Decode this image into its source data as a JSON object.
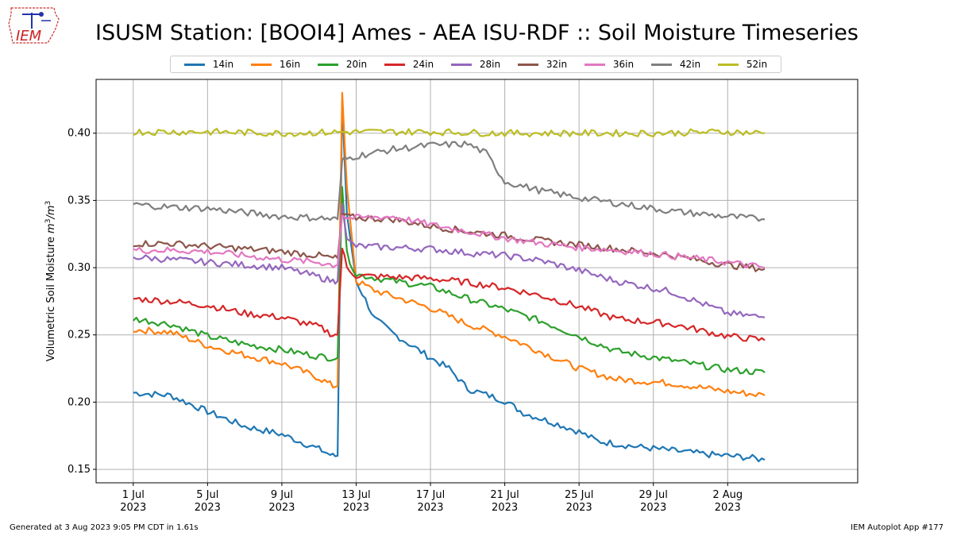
{
  "header": {
    "title": "ISUSM Station: [BOOI4] Ames - AEA ISU-RDF :: Soil Moisture Timeseries",
    "logo_text": "IEM"
  },
  "footer": {
    "left": "Generated at 3 Aug 2023 9:05 PM CDT in 1.61s",
    "right": "IEM Autoplot App #177"
  },
  "chart_data": {
    "type": "line",
    "title": "ISUSM Station: [BOOI4] Ames - AEA ISU-RDF :: Soil Moisture Timeseries",
    "ylabel": "Volumetric Soil Moisture m³/m³",
    "ylabel_main": "Volumetric Soil Moisture ",
    "ylabel_unit_a": "m",
    "ylabel_unit_b": "/m",
    "ylabel_sup": "3",
    "xlim_dates": [
      "2023-06-29",
      "2023-08-09"
    ],
    "ylim": [
      0.14,
      0.44
    ],
    "grid": true,
    "legend_position": "top-center",
    "xticks": [
      {
        "date": "2023-07-01",
        "line1": "1 Jul",
        "line2": "2023"
      },
      {
        "date": "2023-07-05",
        "line1": "5 Jul",
        "line2": "2023"
      },
      {
        "date": "2023-07-09",
        "line1": "9 Jul",
        "line2": "2023"
      },
      {
        "date": "2023-07-13",
        "line1": "13 Jul",
        "line2": "2023"
      },
      {
        "date": "2023-07-17",
        "line1": "17 Jul",
        "line2": "2023"
      },
      {
        "date": "2023-07-21",
        "line1": "21 Jul",
        "line2": "2023"
      },
      {
        "date": "2023-07-25",
        "line1": "25 Jul",
        "line2": "2023"
      },
      {
        "date": "2023-07-29",
        "line1": "29 Jul",
        "line2": "2023"
      },
      {
        "date": "2023-08-02",
        "line1": "2 Aug",
        "line2": "2023"
      }
    ],
    "yticks": [
      {
        "value": 0.15,
        "label": "0.15"
      },
      {
        "value": 0.2,
        "label": "0.20"
      },
      {
        "value": 0.25,
        "label": "0.25"
      },
      {
        "value": 0.3,
        "label": "0.30"
      },
      {
        "value": 0.35,
        "label": "0.35"
      },
      {
        "value": 0.4,
        "label": "0.40"
      }
    ],
    "series": [
      {
        "name": "14in",
        "color": "#1f77b4",
        "x": [
          "2023-07-01",
          "2023-07-03",
          "2023-07-05",
          "2023-07-07",
          "2023-07-09",
          "2023-07-11",
          "2023-07-11T18:00",
          "2023-07-12T00:00",
          "2023-07-12T06:00",
          "2023-07-12T12:00",
          "2023-07-13",
          "2023-07-14",
          "2023-07-15",
          "2023-07-17",
          "2023-07-18",
          "2023-07-19",
          "2023-07-21",
          "2023-07-22",
          "2023-07-24",
          "2023-07-25",
          "2023-07-26",
          "2023-07-28",
          "2023-07-30",
          "2023-08-01",
          "2023-08-03",
          "2023-08-04"
        ],
        "y": [
          0.207,
          0.205,
          0.193,
          0.182,
          0.176,
          0.165,
          0.16,
          0.16,
          0.424,
          0.34,
          0.29,
          0.262,
          0.251,
          0.233,
          0.225,
          0.21,
          0.201,
          0.192,
          0.183,
          0.178,
          0.171,
          0.167,
          0.164,
          0.161,
          0.159,
          0.157
        ]
      },
      {
        "name": "16in",
        "color": "#ff7f0e",
        "x": [
          "2023-07-01",
          "2023-07-03",
          "2023-07-05",
          "2023-07-07",
          "2023-07-09",
          "2023-07-11",
          "2023-07-11T18:00",
          "2023-07-12T00:00",
          "2023-07-12T06:00",
          "2023-07-12T12:00",
          "2023-07-13",
          "2023-07-14",
          "2023-07-17",
          "2023-07-19",
          "2023-07-21",
          "2023-07-23",
          "2023-07-25",
          "2023-07-27",
          "2023-07-30",
          "2023-08-02",
          "2023-08-04"
        ],
        "y": [
          0.254,
          0.252,
          0.242,
          0.235,
          0.229,
          0.218,
          0.212,
          0.212,
          0.43,
          0.36,
          0.29,
          0.283,
          0.27,
          0.258,
          0.249,
          0.237,
          0.225,
          0.217,
          0.214,
          0.208,
          0.205
        ]
      },
      {
        "name": "20in",
        "color": "#2ca02c",
        "x": [
          "2023-07-01",
          "2023-07-03",
          "2023-07-05",
          "2023-07-07",
          "2023-07-09",
          "2023-07-11",
          "2023-07-11T18:00",
          "2023-07-12T00:00",
          "2023-07-12T06:00",
          "2023-07-12T12:00",
          "2023-07-13",
          "2023-07-15",
          "2023-07-17",
          "2023-07-19",
          "2023-07-21",
          "2023-07-23",
          "2023-07-25",
          "2023-07-27",
          "2023-07-30",
          "2023-08-02",
          "2023-08-04"
        ],
        "y": [
          0.262,
          0.258,
          0.249,
          0.243,
          0.239,
          0.234,
          0.233,
          0.233,
          0.36,
          0.31,
          0.295,
          0.29,
          0.286,
          0.277,
          0.269,
          0.26,
          0.249,
          0.238,
          0.231,
          0.224,
          0.222
        ]
      },
      {
        "name": "24in",
        "color": "#d62728",
        "x": [
          "2023-07-01",
          "2023-07-03",
          "2023-07-05",
          "2023-07-07",
          "2023-07-09",
          "2023-07-11",
          "2023-07-11T18:00",
          "2023-07-12T00:00",
          "2023-07-12T06:00",
          "2023-07-12T12:00",
          "2023-07-13",
          "2023-07-15",
          "2023-07-17",
          "2023-07-19",
          "2023-07-21",
          "2023-07-23",
          "2023-07-25",
          "2023-07-27",
          "2023-07-30",
          "2023-08-02",
          "2023-08-04"
        ],
        "y": [
          0.277,
          0.275,
          0.272,
          0.266,
          0.263,
          0.256,
          0.25,
          0.25,
          0.315,
          0.3,
          0.294,
          0.293,
          0.292,
          0.289,
          0.285,
          0.279,
          0.271,
          0.262,
          0.258,
          0.249,
          0.246
        ]
      },
      {
        "name": "28in",
        "color": "#9467bd",
        "x": [
          "2023-07-01",
          "2023-07-03",
          "2023-07-05",
          "2023-07-07",
          "2023-07-09",
          "2023-07-11",
          "2023-07-11T18:00",
          "2023-07-12T00:00",
          "2023-07-12T06:00",
          "2023-07-12T12:00",
          "2023-07-13",
          "2023-07-15",
          "2023-07-17",
          "2023-07-19",
          "2023-07-21",
          "2023-07-23",
          "2023-07-25",
          "2023-07-27",
          "2023-07-30",
          "2023-08-02",
          "2023-08-04"
        ],
        "y": [
          0.308,
          0.306,
          0.304,
          0.302,
          0.3,
          0.293,
          0.29,
          0.29,
          0.35,
          0.32,
          0.316,
          0.315,
          0.314,
          0.311,
          0.309,
          0.305,
          0.298,
          0.29,
          0.282,
          0.266,
          0.263
        ]
      },
      {
        "name": "32in",
        "color": "#8c564b",
        "x": [
          "2023-07-01",
          "2023-07-03",
          "2023-07-05",
          "2023-07-07",
          "2023-07-09",
          "2023-07-11",
          "2023-07-11T18:00",
          "2023-07-12T00:00",
          "2023-07-12T06:00",
          "2023-07-12T12:00",
          "2023-07-13",
          "2023-07-15",
          "2023-07-17",
          "2023-07-19",
          "2023-07-21",
          "2023-07-23",
          "2023-07-25",
          "2023-07-27",
          "2023-07-30",
          "2023-08-02",
          "2023-08-04"
        ],
        "y": [
          0.318,
          0.318,
          0.316,
          0.314,
          0.312,
          0.309,
          0.307,
          0.307,
          0.34,
          0.338,
          0.337,
          0.336,
          0.331,
          0.327,
          0.324,
          0.32,
          0.317,
          0.314,
          0.309,
          0.302,
          0.299
        ]
      },
      {
        "name": "36in",
        "color": "#e377c2",
        "x": [
          "2023-07-01",
          "2023-07-03",
          "2023-07-05",
          "2023-07-07",
          "2023-07-09",
          "2023-07-11",
          "2023-07-11T18:00",
          "2023-07-12T00:00",
          "2023-07-12T06:00",
          "2023-07-12T12:00",
          "2023-07-13",
          "2023-07-15",
          "2023-07-17",
          "2023-07-19",
          "2023-07-21",
          "2023-07-23",
          "2023-07-25",
          "2023-07-27",
          "2023-07-30",
          "2023-08-02",
          "2023-08-04"
        ],
        "y": [
          0.313,
          0.313,
          0.312,
          0.309,
          0.306,
          0.304,
          0.302,
          0.302,
          0.34,
          0.337,
          0.337,
          0.338,
          0.332,
          0.327,
          0.322,
          0.318,
          0.315,
          0.313,
          0.309,
          0.304,
          0.3
        ]
      },
      {
        "name": "42in",
        "color": "#7f7f7f",
        "x": [
          "2023-07-01",
          "2023-07-03",
          "2023-07-05",
          "2023-07-07",
          "2023-07-09",
          "2023-07-11",
          "2023-07-11T18:00",
          "2023-07-12T00:00",
          "2023-07-12T06:00",
          "2023-07-12T12:00",
          "2023-07-13",
          "2023-07-15",
          "2023-07-17",
          "2023-07-19",
          "2023-07-20",
          "2023-07-21",
          "2023-07-23",
          "2023-07-25",
          "2023-07-27",
          "2023-07-30",
          "2023-08-02",
          "2023-08-04"
        ],
        "y": [
          0.347,
          0.345,
          0.344,
          0.341,
          0.338,
          0.337,
          0.336,
          0.336,
          0.38,
          0.381,
          0.383,
          0.388,
          0.391,
          0.392,
          0.385,
          0.364,
          0.357,
          0.352,
          0.348,
          0.342,
          0.338,
          0.336
        ]
      },
      {
        "name": "52in",
        "color": "#bcbd22",
        "x": [
          "2023-07-01",
          "2023-07-05",
          "2023-07-09",
          "2023-07-13",
          "2023-07-17",
          "2023-07-21",
          "2023-07-25",
          "2023-07-29",
          "2023-08-02",
          "2023-08-04"
        ],
        "y": [
          0.401,
          0.401,
          0.4,
          0.401,
          0.401,
          0.4,
          0.4,
          0.4,
          0.401,
          0.4
        ]
      }
    ]
  }
}
